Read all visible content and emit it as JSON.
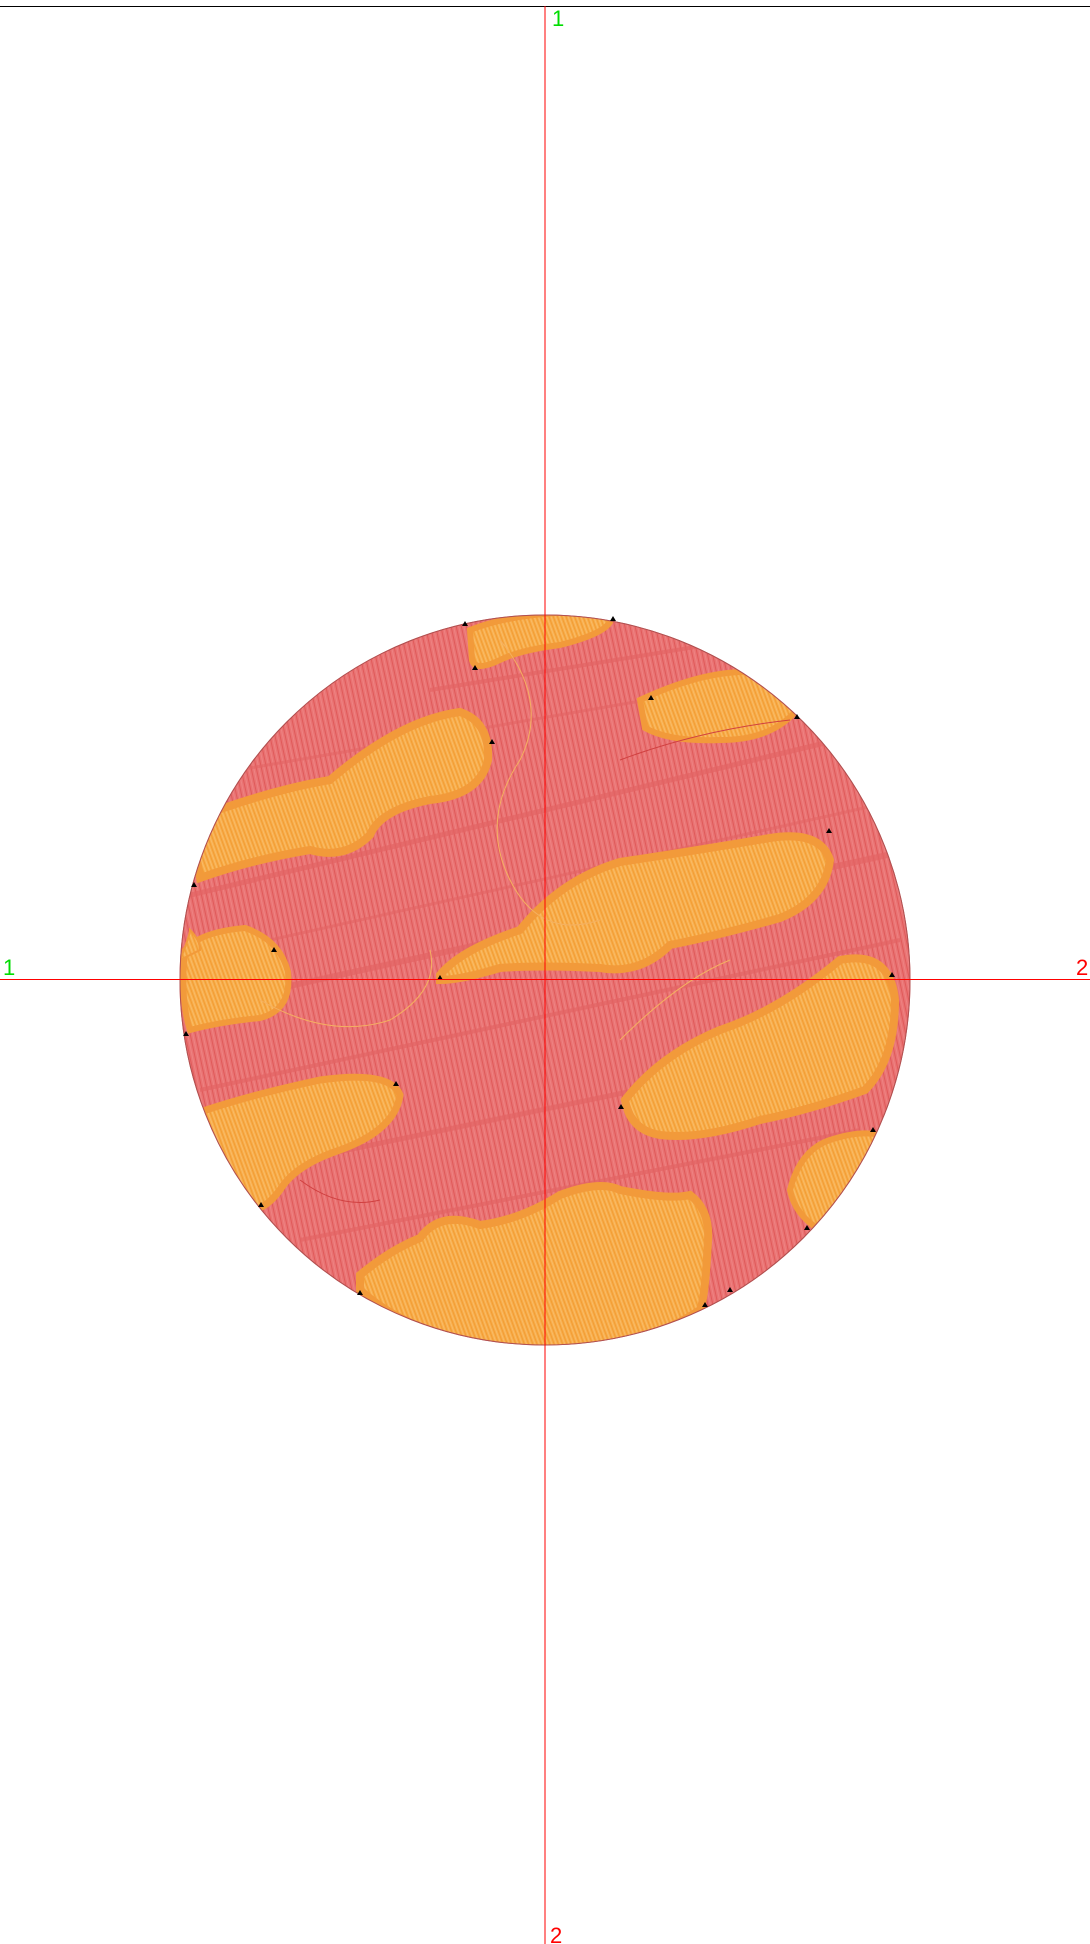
{
  "view": {
    "background": "#ffffff",
    "frame_color": "#000000"
  },
  "axes": {
    "color": "#ff0000",
    "labels": {
      "top": "1",
      "left": "1",
      "right": "2",
      "bottom": "2"
    },
    "label_colors": {
      "positive": "#00dd00",
      "negative": "#ff0000"
    }
  },
  "embroidery": {
    "colors": {
      "background_fill": "#e97373",
      "background_stitch": "#e05a5a",
      "patch_fill": "#f7ad4a",
      "patch_border": "#f29a3a",
      "marker": "#000000"
    },
    "patch_count": 10,
    "marker_icon": "triangle-icon"
  }
}
